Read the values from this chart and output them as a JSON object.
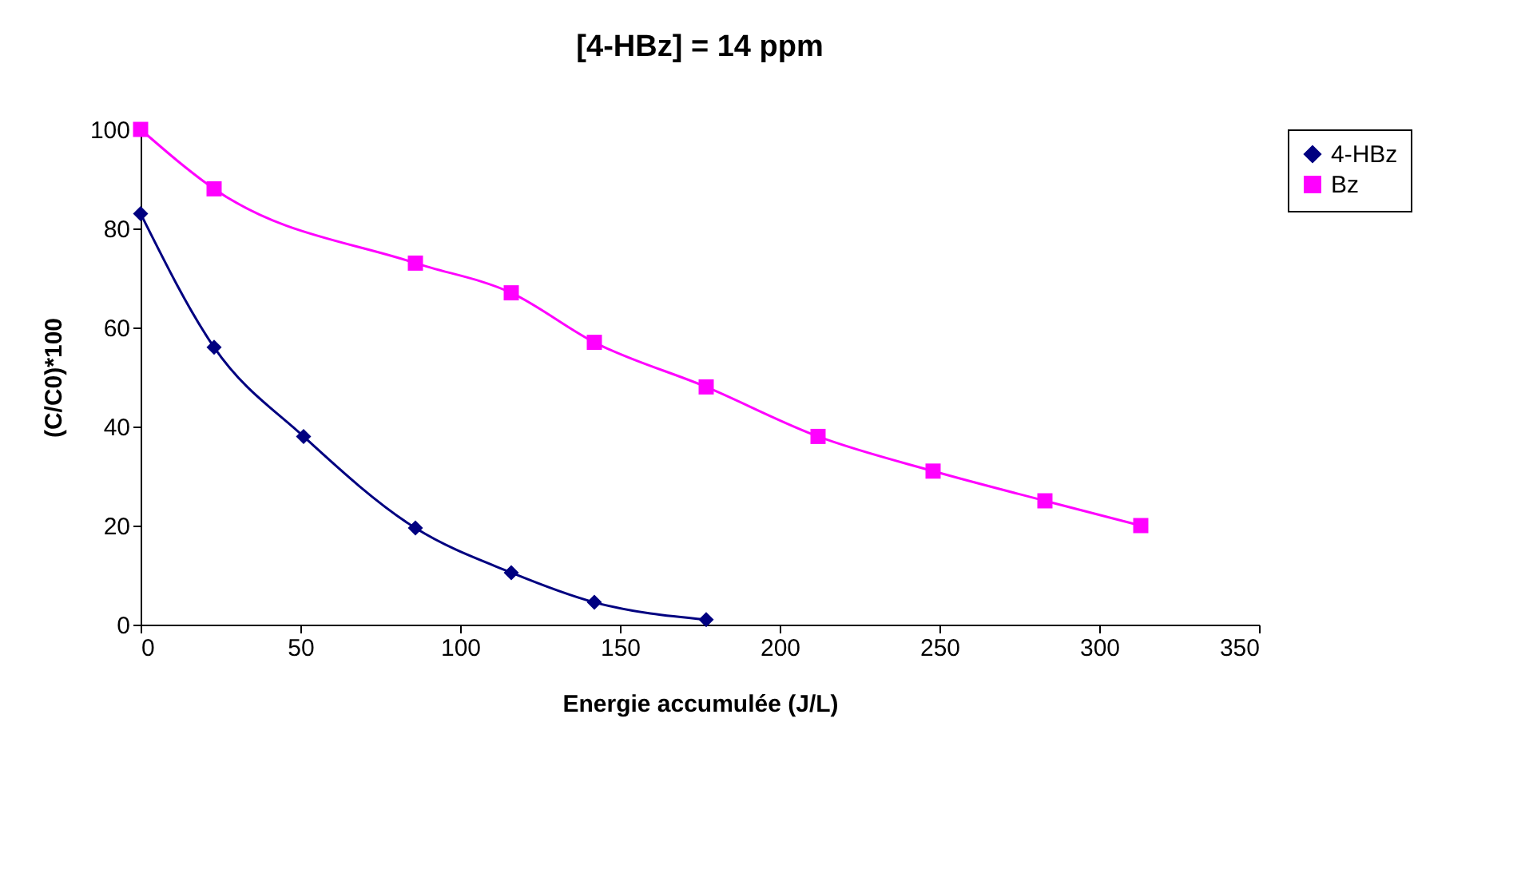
{
  "chart_data": {
    "type": "line",
    "title": "[4-HBz] = 14 ppm",
    "xlabel": "Energie accumulée (J/L)",
    "ylabel": "(C/C0)*100",
    "series": [
      {
        "name": "4-HBz",
        "color": "#000080",
        "marker": "diamond",
        "x": [
          0,
          23,
          51,
          86,
          116,
          142,
          177
        ],
        "values": [
          83,
          56,
          38,
          19.5,
          10.5,
          4.5,
          1
        ]
      },
      {
        "name": "Bz",
        "color": "#ff00ff",
        "marker": "square",
        "x": [
          0,
          23,
          86,
          116,
          142,
          177,
          212,
          248,
          283,
          313
        ],
        "values": [
          100,
          88,
          73,
          67,
          57,
          48,
          38,
          31,
          25,
          20
        ]
      }
    ],
    "xlim": [
      0,
      350
    ],
    "xticks": [
      0,
      50,
      100,
      150,
      200,
      250,
      300,
      350
    ],
    "ylim": [
      0,
      100
    ],
    "yticks": [
      0,
      20,
      40,
      60,
      80,
      100
    ],
    "grid": false,
    "legend": "right"
  }
}
